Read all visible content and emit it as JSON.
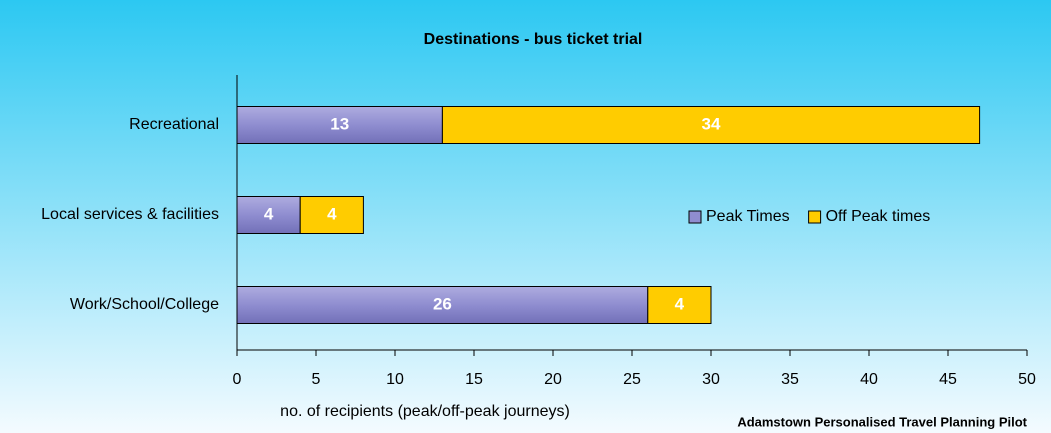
{
  "chart_data": {
    "type": "stacked-barh",
    "title": "Destinations - bus ticket trial",
    "xlabel": "no. of recipients (peak/off-peak journeys)",
    "footnote": "Adamstown Personalised Travel Planning Pilot",
    "categories": [
      "Recreational",
      "Local services & facilities",
      "Work/School/College"
    ],
    "series": [
      {
        "name": "Peak Times",
        "color": "#8f8dd0",
        "values": [
          13,
          4,
          26
        ]
      },
      {
        "name": "Off Peak times",
        "color": "#ffcc00",
        "values": [
          34,
          4,
          4
        ]
      }
    ],
    "xlim": [
      0,
      50
    ],
    "xticks": [
      0,
      5,
      10,
      15,
      20,
      25,
      30,
      35,
      40,
      45,
      50
    ],
    "legend": "right"
  }
}
